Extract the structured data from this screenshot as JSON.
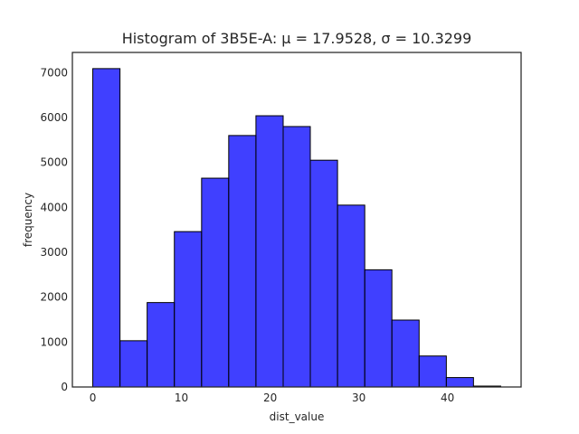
{
  "chart_data": {
    "type": "bar",
    "title": "Histogram of 3B5E-A: μ = 17.9528, σ = 10.3299",
    "xlabel": "dist_value",
    "ylabel": "frequency",
    "xlim": [
      -2.3,
      48.3
    ],
    "ylim": [
      0,
      7450
    ],
    "x_ticks": [
      0,
      10,
      20,
      30,
      40
    ],
    "y_ticks": [
      0,
      1000,
      2000,
      3000,
      4000,
      5000,
      6000,
      7000
    ],
    "grid": false,
    "bin_edges": [
      0,
      3.07,
      6.13,
      9.2,
      12.27,
      15.33,
      18.4,
      21.47,
      24.53,
      27.6,
      30.67,
      33.73,
      36.8,
      39.87,
      42.93,
      46.0
    ],
    "values": [
      7090,
      1030,
      1880,
      3460,
      4650,
      5600,
      6040,
      5800,
      5050,
      4050,
      2610,
      1490,
      690,
      210,
      20
    ],
    "bar_color": "#0000ff",
    "bar_opacity": 0.75,
    "edge_color": "#000000"
  }
}
